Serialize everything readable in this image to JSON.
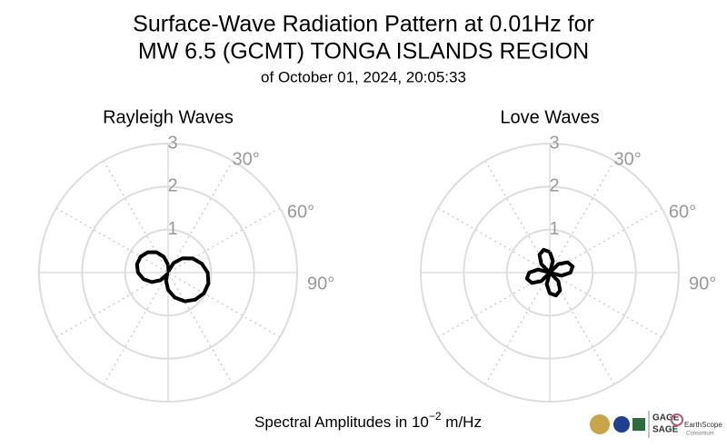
{
  "title": [
    "Surface-Wave Radiation Pattern at 0.01Hz for",
    "MW 6.5 (GCMT) TONGA ISLANDS REGION"
  ],
  "subtitle": "of October 01, 2024, 20:05:33",
  "footer": {
    "text": "Spectral Amplitudes in 10",
    "sup": "−2",
    "after": " m/Hz"
  },
  "logos": [
    "GAGE",
    "SAGE",
    "EarthScope",
    "Consortium"
  ],
  "chart_data": [
    {
      "type": "polar",
      "title": "Rayleigh Waves",
      "color": "#000000",
      "direction": "clockwise",
      "zero": "N",
      "theta": [
        0,
        15,
        30,
        45,
        60,
        75,
        90,
        105,
        120,
        135,
        150,
        165,
        180,
        195,
        210,
        225,
        240,
        255,
        270,
        285,
        300,
        315,
        330,
        345,
        360
      ],
      "r": [
        0.18,
        0.04,
        0.26,
        0.47,
        0.66,
        0.81,
        0.92,
        0.97,
        0.96,
        0.89,
        0.77,
        0.6,
        0.4,
        0.19,
        0.04,
        0.25,
        0.44,
        0.59,
        0.7,
        0.75,
        0.74,
        0.67,
        0.55,
        0.38,
        0.18
      ],
      "rlim": [
        0,
        3
      ],
      "rticks": [
        1,
        2,
        3
      ],
      "thetaticks": [
        {
          "value": 30,
          "label": "30°"
        },
        {
          "value": 60,
          "label": "60°"
        },
        {
          "value": 90,
          "label": "90°"
        }
      ]
    },
    {
      "type": "polar",
      "title": "Love Waves",
      "color": "#000000",
      "direction": "clockwise",
      "zero": "N",
      "theta": [
        0,
        15,
        30,
        45,
        60,
        75,
        90,
        105,
        120,
        135,
        150,
        165,
        180,
        195,
        210,
        225,
        240,
        255,
        270,
        285,
        300,
        315,
        330,
        345,
        360
      ],
      "r": [
        0.48,
        0.28,
        0.0,
        0.28,
        0.48,
        0.55,
        0.48,
        0.28,
        0.0,
        0.28,
        0.48,
        0.55,
        0.48,
        0.28,
        0.0,
        0.28,
        0.48,
        0.55,
        0.48,
        0.28,
        0.0,
        0.28,
        0.48,
        0.55,
        0.48
      ],
      "rlim": [
        0,
        3
      ],
      "rticks": [
        1,
        2,
        3
      ],
      "thetaticks": [
        {
          "value": 30,
          "label": "30°"
        },
        {
          "value": 60,
          "label": "60°"
        },
        {
          "value": 90,
          "label": "90°"
        }
      ]
    }
  ]
}
